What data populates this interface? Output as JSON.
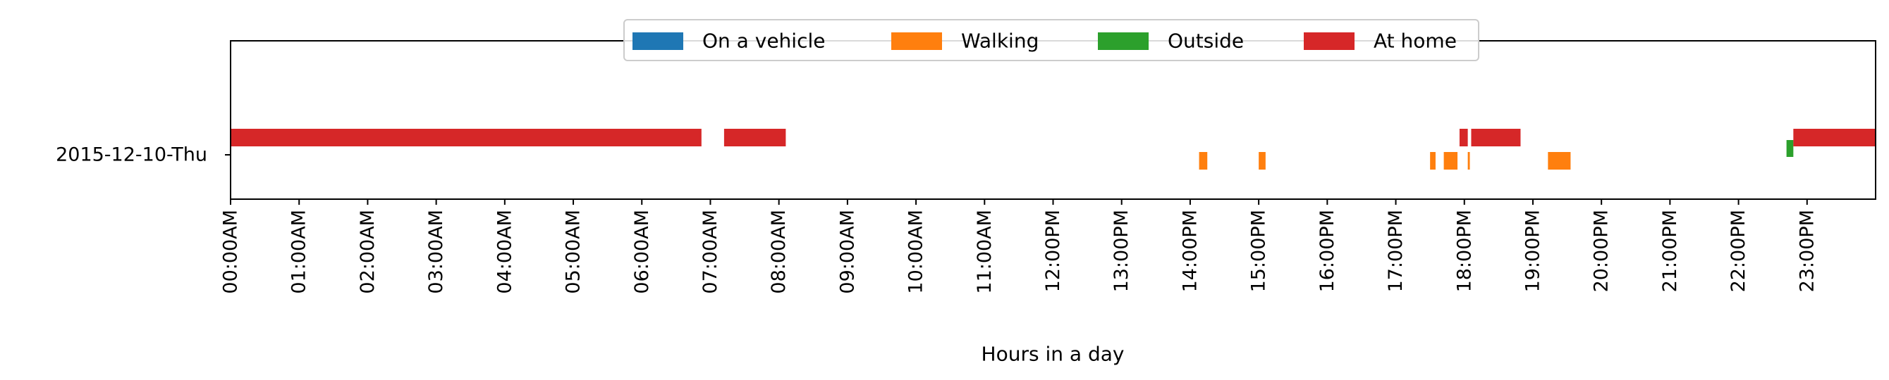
{
  "chart_data": {
    "type": "broken_barh",
    "title": "",
    "xlabel": "Hours in a day",
    "ylabel": "",
    "xlim_hours": [
      0,
      24
    ],
    "row_label": "2015-12-10-Thu",
    "x_ticks": [
      "00:00AM",
      "01:00AM",
      "02:00AM",
      "03:00AM",
      "04:00AM",
      "05:00AM",
      "06:00AM",
      "07:00AM",
      "08:00AM",
      "09:00AM",
      "10:00AM",
      "11:00AM",
      "12:00PM",
      "13:00PM",
      "14:00PM",
      "15:00PM",
      "16:00PM",
      "17:00PM",
      "18:00PM",
      "19:00PM",
      "20:00PM",
      "21:00PM",
      "22:00PM",
      "23:00PM"
    ],
    "legend_position": "upper-center",
    "series": [
      {
        "name": "On a vehicle",
        "color": "#1f77b4",
        "lane": 0,
        "segments": []
      },
      {
        "name": "Walking",
        "color": "#ff7f0e",
        "lane": 2,
        "segments": [
          [
            14.13,
            14.25
          ],
          [
            15.0,
            15.1
          ],
          [
            17.5,
            17.58
          ],
          [
            17.7,
            17.9
          ],
          [
            18.05,
            18.08
          ],
          [
            19.22,
            19.55
          ]
        ]
      },
      {
        "name": "Outside",
        "color": "#2ca02c",
        "lane": 1,
        "segments": [
          [
            22.7,
            22.8
          ]
        ]
      },
      {
        "name": "At home",
        "color": "#d62728",
        "lane": 0,
        "segments": [
          [
            0.0,
            6.87
          ],
          [
            7.2,
            8.1
          ],
          [
            17.93,
            18.05
          ],
          [
            18.1,
            18.82
          ],
          [
            22.8,
            24.0
          ]
        ]
      }
    ]
  }
}
